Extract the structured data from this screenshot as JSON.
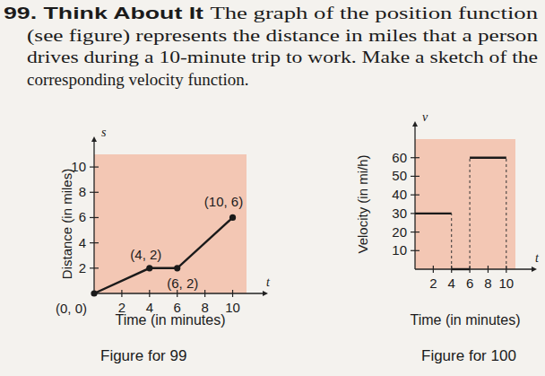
{
  "problem": {
    "number": "99.",
    "heading": "Think About It",
    "lines": [
      "The graph of the position function",
      "(see figure) represents the distance in miles that a person",
      "drives during a 10-minute trip to work. Make a sketch of the",
      "corresponding velocity function."
    ]
  },
  "chart_data": [
    {
      "type": "line",
      "title": "Figure for 99",
      "x_label": "Time (in minutes)",
      "y_label": "Distance (in miles)",
      "annotations": [
        {
          "text": "s",
          "axis": "y"
        },
        {
          "text": "t",
          "axis": "x"
        }
      ],
      "x": [
        0,
        4,
        6,
        10
      ],
      "values": [
        0,
        2,
        2,
        6
      ],
      "value_labels": [
        "(0, 0)",
        "(4, 2)",
        "(6, 2)",
        "(10, 6)"
      ],
      "data_labels": true,
      "marker": "circle",
      "color": "#1a1a1a",
      "xlim": [
        0,
        11
      ],
      "ylim": [
        0,
        11
      ],
      "xticks": [
        2,
        4,
        6,
        8,
        10
      ],
      "yticks": [
        2,
        4,
        6,
        8,
        10
      ],
      "grid": false
    },
    {
      "type": "step",
      "title": "Figure for 100",
      "x_label": "Time (in minutes)",
      "y_label": "Velocity (in mi/h)",
      "annotations": [
        {
          "text": "v",
          "axis": "y"
        },
        {
          "text": "t",
          "axis": "x"
        }
      ],
      "bins": [
        0,
        4,
        6,
        10
      ],
      "values": [
        30,
        0,
        60
      ],
      "color": "#1a1a1a",
      "xlim": [
        0,
        11
      ],
      "ylim": [
        0,
        70
      ],
      "xticks": [
        2,
        4,
        6,
        8,
        10
      ],
      "yticks": [
        10,
        20,
        30,
        40,
        50,
        60
      ],
      "grid": false
    }
  ]
}
